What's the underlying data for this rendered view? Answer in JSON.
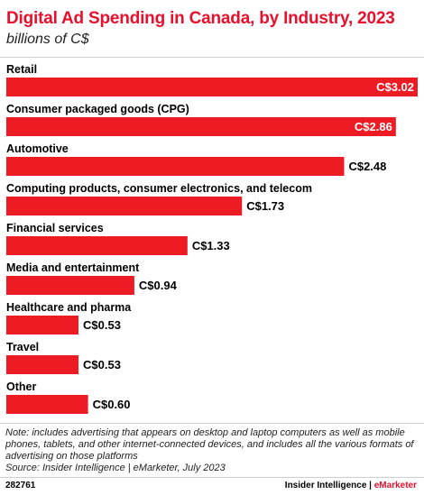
{
  "title": "Digital Ad Spending in Canada, by Industry, 2023",
  "subtitle": "billions of C$",
  "colors": {
    "bar": "#ed1c24",
    "title": "#e8112d"
  },
  "chart_data": {
    "type": "bar",
    "orientation": "horizontal",
    "categories": [
      "Retail",
      "Consumer packaged goods (CPG)",
      "Automotive",
      "Computing products, consumer electronics, and telecom",
      "Financial services",
      "Media and entertainment",
      "Healthcare and pharma",
      "Travel",
      "Other"
    ],
    "values": [
      3.02,
      2.86,
      2.48,
      1.73,
      1.33,
      0.94,
      0.53,
      0.53,
      0.6
    ],
    "value_labels": [
      "C$3.02",
      "C$2.86",
      "C$2.48",
      "C$1.73",
      "C$1.33",
      "C$0.94",
      "C$0.53",
      "C$0.53",
      "C$0.60"
    ],
    "grid": false
  },
  "note": "Note: includes advertising that appears on desktop and laptop computers as well as mobile phones, tablets, and other internet-connected devices, and includes all the various formats of advertising on those platforms",
  "source": "Source: Insider Intelligence | eMarketer, July 2023",
  "footer": {
    "chart_id": "282761",
    "brand_main": "Insider Intelligence | ",
    "brand_accent": "eMarketer"
  }
}
